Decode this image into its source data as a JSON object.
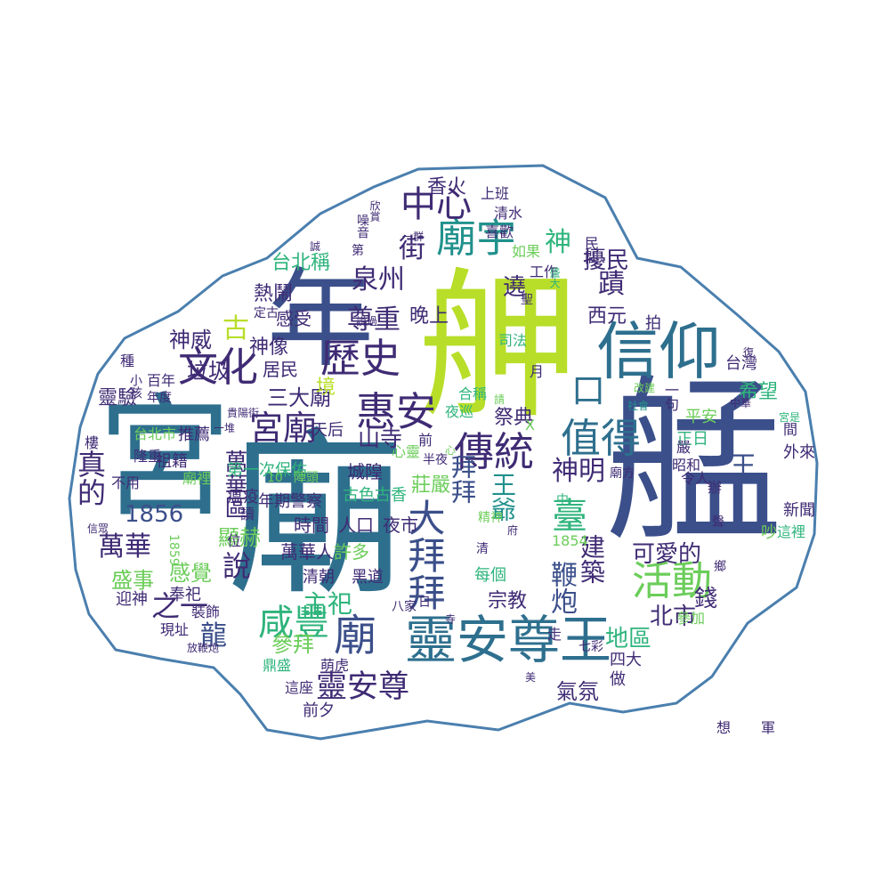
{
  "palette": [
    "#3f2b74",
    "#3b4f8a",
    "#2e6f8e",
    "#21918c",
    "#2fb47c",
    "#6ccd5a",
    "#b8de29"
  ],
  "words": [
    {
      "t": "廟",
      "c": "#2e6f8e"
    },
    {
      "t": "舺",
      "c": "#b8de29"
    },
    {
      "t": "艋",
      "c": "#3b4f8a"
    },
    {
      "t": "宮",
      "c": "#2e6f8e"
    },
    {
      "t": "年",
      "c": "#3b4f8a"
    },
    {
      "t": "信仰",
      "c": "#2e6f8e"
    },
    {
      "t": "靈安尊王",
      "c": "#2e6f8e"
    },
    {
      "t": "文化",
      "c": "#3f2b74"
    },
    {
      "t": "惠安",
      "c": "#3f2b74"
    },
    {
      "t": "歷史",
      "c": "#3f2b74"
    },
    {
      "t": "傳統",
      "c": "#3f2b74"
    },
    {
      "t": "活動",
      "c": "#6ccd5a"
    },
    {
      "t": "值得",
      "c": "#2e6f8e"
    },
    {
      "t": "宮廟",
      "c": "#3f2b74"
    },
    {
      "t": "廟宇",
      "c": "#21918c"
    },
    {
      "t": "中心",
      "c": "#3f2b74"
    },
    {
      "t": "咸豐",
      "c": "#2fb47c"
    },
    {
      "t": "廟",
      "c": "#3b4f8a"
    },
    {
      "t": "靈安尊",
      "c": "#3f2b74"
    },
    {
      "t": "泉州",
      "c": "#3f2b74"
    },
    {
      "t": "尊重",
      "c": "#3f2b74"
    },
    {
      "t": "蹟",
      "c": "#3f2b74"
    },
    {
      "t": "神",
      "c": "#2fb47c"
    },
    {
      "t": "街",
      "c": "#3f2b74"
    },
    {
      "t": "台北稱",
      "c": "#2fb47c"
    },
    {
      "t": "口",
      "c": "#2e6f8e"
    },
    {
      "t": "王",
      "c": "#3b4f8a"
    },
    {
      "t": "大拜拜",
      "c": "#3b4f8a"
    },
    {
      "t": "拜拜",
      "c": "#3b4f8a"
    },
    {
      "t": "臺",
      "c": "#2fb47c"
    },
    {
      "t": "山寺",
      "c": "#3f2b74"
    },
    {
      "t": "萬華",
      "c": "#3f2b74"
    },
    {
      "t": "說",
      "c": "#3f2b74"
    },
    {
      "t": "之一",
      "c": "#3f2b74"
    },
    {
      "t": "主祀",
      "c": "#2fb47c"
    },
    {
      "t": "神明",
      "c": "#3f2b74"
    },
    {
      "t": "1856",
      "c": "#3b4f8a"
    },
    {
      "t": "真的",
      "c": "#3f2b74"
    },
    {
      "t": "古",
      "c": "#b8de29"
    },
    {
      "t": "神威",
      "c": "#3f2b74"
    },
    {
      "t": "垃圾",
      "c": "#3f2b74"
    },
    {
      "t": "三大廟",
      "c": "#3f2b74"
    },
    {
      "t": "靈驗",
      "c": "#3f2b74"
    },
    {
      "t": "神像",
      "c": "#3f2b74"
    },
    {
      "t": "萬華區",
      "c": "#3f2b74"
    },
    {
      "t": "擾民",
      "c": "#3f2b74"
    },
    {
      "t": "西元",
      "c": "#3f2b74"
    },
    {
      "t": "希望",
      "c": "#2fb47c"
    },
    {
      "t": "王爺",
      "c": "#21918c"
    },
    {
      "t": "莊嚴",
      "c": "#6ccd5a"
    },
    {
      "t": "鞭炮",
      "c": "#3b4f8a"
    },
    {
      "t": "建築",
      "c": "#3f2b74"
    },
    {
      "t": "可愛的",
      "c": "#3f2b74"
    },
    {
      "t": "北市",
      "c": "#3f2b74"
    },
    {
      "t": "地區",
      "c": "#2fb47c"
    },
    {
      "t": "錢",
      "c": "#3f2b74"
    },
    {
      "t": "顯赫",
      "c": "#6ccd5a"
    },
    {
      "t": "感覺",
      "c": "#6ccd5a"
    },
    {
      "t": "盛事",
      "c": "#6ccd5a"
    },
    {
      "t": "龍",
      "c": "#3b4f8a"
    },
    {
      "t": "參拜",
      "c": "#6ccd5a"
    },
    {
      "t": "氣氛",
      "c": "#3f2b74"
    },
    {
      "t": "祭典",
      "c": "#3f2b74"
    },
    {
      "t": "宗教",
      "c": "#3f2b74"
    },
    {
      "t": "遶",
      "c": "#3f2b74"
    },
    {
      "t": "晚上",
      "c": "#3f2b74"
    },
    {
      "t": "香火",
      "c": "#3f2b74"
    },
    {
      "t": "境",
      "c": "#b8de29"
    },
    {
      "t": "熱鬧",
      "c": "#3f2b74"
    },
    {
      "t": "感受",
      "c": "#3f2b74"
    },
    {
      "t": "居民",
      "c": "#3f2b74"
    },
    {
      "t": "城隍",
      "c": "#3f2b74"
    },
    {
      "t": "時間",
      "c": "#3f2b74"
    },
    {
      "t": "人口",
      "c": "#3f2b74"
    },
    {
      "t": "夜市",
      "c": "#3f2b74"
    },
    {
      "t": "萬華人",
      "c": "#3f2b74"
    },
    {
      "t": "許多",
      "c": "#6ccd5a"
    },
    {
      "t": "清朝",
      "c": "#3f2b74"
    },
    {
      "t": "黑道",
      "c": "#3f2b74"
    },
    {
      "t": "古色古香",
      "c": "#2fb47c"
    },
    {
      "t": "年期警察",
      "c": "#3f2b74"
    },
    {
      "t": "第一次保佑",
      "c": "#2fb47c"
    },
    {
      "t": "瘟疫",
      "c": "#3f2b74"
    },
    {
      "t": "祖籍",
      "c": "#3f2b74"
    },
    {
      "t": "推薦",
      "c": "#3f2b74"
    },
    {
      "t": "台北市",
      "c": "#6ccd5a"
    },
    {
      "t": "天后",
      "c": "#3f2b74"
    },
    {
      "t": "正日",
      "c": "#2fb47c"
    },
    {
      "t": "平安",
      "c": "#6ccd5a"
    },
    {
      "t": "台灣",
      "c": "#3f2b74"
    },
    {
      "t": "外來",
      "c": "#3f2b74"
    },
    {
      "t": "新聞",
      "c": "#3f2b74"
    },
    {
      "t": "這裡",
      "c": "#2fb47c"
    },
    {
      "t": "令人",
      "c": "#3f2b74"
    },
    {
      "t": "昭和",
      "c": "#3f2b74"
    },
    {
      "t": "四大",
      "c": "#3f2b74"
    },
    {
      "t": "做",
      "c": "#3f2b74"
    },
    {
      "t": "前夕",
      "c": "#3f2b74"
    },
    {
      "t": "這座",
      "c": "#3f2b74"
    },
    {
      "t": "萌虎",
      "c": "#3f2b74"
    },
    {
      "t": "迎神",
      "c": "#3f2b74"
    },
    {
      "t": "奉祀",
      "c": "#3f2b74"
    },
    {
      "t": "裝飾",
      "c": "#3f2b74"
    },
    {
      "t": "現址",
      "c": "#3f2b74"
    },
    {
      "t": "鼎盛",
      "c": "#2fb47c"
    },
    {
      "t": "參加",
      "c": "#6ccd5a"
    },
    {
      "t": "上班",
      "c": "#3f2b74"
    },
    {
      "t": "清水",
      "c": "#3f2b74"
    },
    {
      "t": "喜歡",
      "c": "#3f2b74"
    },
    {
      "t": "如果",
      "c": "#6ccd5a"
    },
    {
      "t": "工作",
      "c": "#3f2b74"
    },
    {
      "t": "司法",
      "c": "#2fb47c"
    },
    {
      "t": "夜巡",
      "c": "#2fb47c"
    },
    {
      "t": "合稱",
      "c": "#2fb47c"
    },
    {
      "t": "每個",
      "c": "#2fb47c"
    },
    {
      "t": "1854",
      "c": "#6ccd5a"
    },
    {
      "t": "1859",
      "c": "#6ccd5a"
    },
    {
      "t": "不用",
      "c": "#3f2b74"
    },
    {
      "t": "百年",
      "c": "#3f2b74"
    },
    {
      "t": "種",
      "c": "#3f2b74"
    },
    {
      "t": "樓",
      "c": "#3f2b74"
    },
    {
      "t": "隆重",
      "c": "#3f2b74"
    },
    {
      "t": "讀",
      "c": "#3f2b74"
    },
    {
      "t": "位",
      "c": "#3f2b74"
    },
    {
      "t": "廟裡",
      "c": "#6ccd5a"
    },
    {
      "t": "10",
      "c": "#6ccd5a"
    },
    {
      "t": "陣頭",
      "c": "#6ccd5a"
    },
    {
      "t": "心靈",
      "c": "#6ccd5a"
    },
    {
      "t": "半夜",
      "c": "#3f2b74"
    },
    {
      "t": "前",
      "c": "#3f2b74"
    },
    {
      "t": "月",
      "c": "#3f2b74"
    },
    {
      "t": "一句",
      "c": "#3f2b74"
    },
    {
      "t": "間",
      "c": "#3f2b74"
    },
    {
      "t": "嚴",
      "c": "#3f2b74"
    },
    {
      "t": "辦",
      "c": "#3f2b74"
    },
    {
      "t": "想",
      "c": "#3f2b74"
    },
    {
      "t": "軍",
      "c": "#3f2b74"
    },
    {
      "t": "走",
      "c": "#3f2b74"
    },
    {
      "t": "八家",
      "c": "#3f2b74"
    },
    {
      "t": "寺",
      "c": "#3f2b74"
    },
    {
      "t": "日",
      "c": "#3f2b74"
    },
    {
      "t": "拍",
      "c": "#3f2b74"
    },
    {
      "t": "吵",
      "c": "#6ccd5a"
    },
    {
      "t": "X",
      "c": "#6ccd5a"
    },
    {
      "t": "中",
      "c": "#2fb47c"
    },
    {
      "t": "精神",
      "c": "#6ccd5a"
    },
    {
      "t": "清",
      "c": "#3f2b74"
    },
    {
      "t": "鄉",
      "c": "#3f2b74"
    },
    {
      "t": "聲",
      "c": "#3f2b74"
    },
    {
      "t": "聖",
      "c": "#3f2b74"
    },
    {
      "t": "盛大",
      "c": "#2fb47c"
    },
    {
      "t": "民間",
      "c": "#3f2b74"
    },
    {
      "t": "噪音",
      "c": "#3f2b74"
    },
    {
      "t": "第",
      "c": "#3f2b74"
    },
    {
      "t": "誠",
      "c": "#3f2b74"
    },
    {
      "t": "一群",
      "c": "#3f2b74"
    },
    {
      "t": "欣賞",
      "c": "#3f2b74"
    },
    {
      "t": "定古",
      "c": "#3f2b74"
    },
    {
      "t": "說過",
      "c": "#3f2b74"
    },
    {
      "t": "復",
      "c": "#3f2b74"
    },
    {
      "t": "改建",
      "c": "#6ccd5a"
    },
    {
      "t": "社會",
      "c": "#21918c"
    },
    {
      "t": "宮是",
      "c": "#2fb47c"
    },
    {
      "t": "小孩",
      "c": "#3f2b74"
    },
    {
      "t": "年度",
      "c": "#3f2b74"
    },
    {
      "t": "貴陽街",
      "c": "#3f2b74"
    },
    {
      "t": "一堆",
      "c": "#3f2b74"
    },
    {
      "t": "放鞭炮",
      "c": "#3f2b74"
    },
    {
      "t": "美",
      "c": "#3f2b74"
    },
    {
      "t": "七彩",
      "c": "#3f2b74"
    },
    {
      "t": "廟方",
      "c": "#3f2b74"
    },
    {
      "t": "請",
      "c": "#6ccd5a"
    },
    {
      "t": "府",
      "c": "#3f2b74"
    },
    {
      "t": "中華",
      "c": "#3f2b74"
    },
    {
      "t": "信眾",
      "c": "#3f2b74"
    },
    {
      "t": "心",
      "c": "#6ccd5a"
    }
  ]
}
